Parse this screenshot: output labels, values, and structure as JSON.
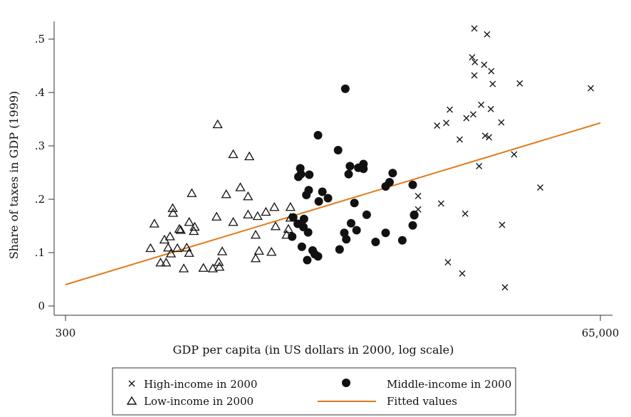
{
  "chart_data": {
    "type": "scatter",
    "title": "",
    "xlabel": "GDP per capita (in US dollars in 2000, log scale)",
    "ylabel": "Share of taxes in GDP (1999)",
    "xscale": "log",
    "xlim": [
      300,
      65000
    ],
    "ylim": [
      0,
      0.52
    ],
    "x_ticks": [
      {
        "value": 300,
        "label": "300"
      },
      {
        "value": 65000,
        "label": "65,000"
      }
    ],
    "y_ticks": [
      {
        "value": 0,
        "label": "0"
      },
      {
        "value": 0.1,
        "label": ".1"
      },
      {
        "value": 0.2,
        "label": ".2"
      },
      {
        "value": 0.3,
        "label": ".3"
      },
      {
        "value": 0.4,
        "label": ".4"
      },
      {
        "value": 0.5,
        "label": ".5"
      }
    ],
    "legend": {
      "placement": "bottom",
      "entries": [
        {
          "series": "high",
          "label": "High-income in 2000"
        },
        {
          "series": "middle",
          "label": "Middle-income in 2000"
        },
        {
          "series": "low",
          "label": "Low-income in 2000"
        },
        {
          "series": "fit",
          "label": "Fitted values"
        }
      ]
    },
    "fitted_line": {
      "name": "Fitted values",
      "color": "#e07b1a",
      "points": [
        [
          300,
          0.04
        ],
        [
          65000,
          0.343
        ]
      ]
    },
    "series": [
      {
        "name": "Low-income in 2000",
        "key": "low",
        "marker": "triangle",
        "points": [
          [
            705,
            0.108
          ],
          [
            733,
            0.154
          ],
          [
            780,
            0.081
          ],
          [
            811,
            0.124
          ],
          [
            825,
            0.081
          ],
          [
            842,
            0.109
          ],
          [
            858,
            0.13
          ],
          [
            866,
            0.098
          ],
          [
            881,
            0.183
          ],
          [
            885,
            0.174
          ],
          [
            924,
            0.108
          ],
          [
            942,
            0.144
          ],
          [
            955,
            0.142
          ],
          [
            985,
            0.07
          ],
          [
            1015,
            0.109
          ],
          [
            1040,
            0.157
          ],
          [
            1040,
            0.099
          ],
          [
            1068,
            0.211
          ],
          [
            1090,
            0.14
          ],
          [
            1100,
            0.148
          ],
          [
            1200,
            0.071
          ],
          [
            1320,
            0.07
          ],
          [
            1370,
            0.167
          ],
          [
            1385,
            0.34
          ],
          [
            1400,
            0.082
          ],
          [
            1410,
            0.073
          ],
          [
            1450,
            0.102
          ],
          [
            1510,
            0.209
          ],
          [
            1620,
            0.284
          ],
          [
            1620,
            0.157
          ],
          [
            1740,
            0.222
          ],
          [
            1880,
            0.171
          ],
          [
            1880,
            0.205
          ],
          [
            1905,
            0.28
          ],
          [
            2030,
            0.133
          ],
          [
            2030,
            0.089
          ],
          [
            2070,
            0.168
          ],
          [
            2100,
            0.103
          ],
          [
            2250,
            0.176
          ],
          [
            2380,
            0.101
          ],
          [
            2450,
            0.185
          ],
          [
            2480,
            0.149
          ],
          [
            2770,
            0.133
          ],
          [
            2820,
            0.144
          ],
          [
            2880,
            0.165
          ],
          [
            2880,
            0.185
          ]
        ]
      },
      {
        "name": "Middle-income in 2000",
        "key": "middle",
        "marker": "circle",
        "points": [
          [
            2930,
            0.13
          ],
          [
            2960,
            0.166
          ],
          [
            3100,
            0.154
          ],
          [
            3120,
            0.242
          ],
          [
            3180,
            0.258
          ],
          [
            3200,
            0.247
          ],
          [
            3230,
            0.111
          ],
          [
            3280,
            0.148
          ],
          [
            3300,
            0.163
          ],
          [
            3380,
            0.208
          ],
          [
            3410,
            0.086
          ],
          [
            3440,
            0.138
          ],
          [
            3460,
            0.217
          ],
          [
            3480,
            0.246
          ],
          [
            3600,
            0.104
          ],
          [
            3680,
            0.097
          ],
          [
            3800,
            0.093
          ],
          [
            3800,
            0.32
          ],
          [
            3830,
            0.196
          ],
          [
            3970,
            0.214
          ],
          [
            4200,
            0.202
          ],
          [
            4650,
            0.292
          ],
          [
            4720,
            0.106
          ],
          [
            4950,
            0.137
          ],
          [
            5000,
            0.407
          ],
          [
            5050,
            0.125
          ],
          [
            5170,
            0.247
          ],
          [
            5240,
            0.262
          ],
          [
            5300,
            0.155
          ],
          [
            5480,
            0.193
          ],
          [
            5600,
            0.142
          ],
          [
            5700,
            0.259
          ],
          [
            6000,
            0.266
          ],
          [
            6000,
            0.257
          ],
          [
            6200,
            0.171
          ],
          [
            6780,
            0.12
          ],
          [
            7500,
            0.224
          ],
          [
            7500,
            0.137
          ],
          [
            7800,
            0.232
          ],
          [
            8050,
            0.249
          ],
          [
            8870,
            0.123
          ],
          [
            9850,
            0.227
          ],
          [
            9850,
            0.151
          ],
          [
            10000,
            0.17
          ],
          [
            10000,
            0.171
          ]
        ]
      },
      {
        "name": "High-income in 2000",
        "key": "high",
        "marker": "x",
        "points": [
          [
            10400,
            0.206
          ],
          [
            10400,
            0.181
          ],
          [
            12580,
            0.338
          ],
          [
            13100,
            0.192
          ],
          [
            13800,
            0.343
          ],
          [
            14030,
            0.082
          ],
          [
            14300,
            0.368
          ],
          [
            15800,
            0.312
          ],
          [
            16200,
            0.061
          ],
          [
            16700,
            0.173
          ],
          [
            16900,
            0.352
          ],
          [
            17900,
            0.466
          ],
          [
            18100,
            0.359
          ],
          [
            18300,
            0.52
          ],
          [
            18300,
            0.432
          ],
          [
            18400,
            0.457
          ],
          [
            19200,
            0.262
          ],
          [
            19600,
            0.377
          ],
          [
            20200,
            0.452
          ],
          [
            20400,
            0.319
          ],
          [
            20800,
            0.509
          ],
          [
            21200,
            0.316
          ],
          [
            21600,
            0.369
          ],
          [
            21700,
            0.44
          ],
          [
            22000,
            0.416
          ],
          [
            24000,
            0.344
          ],
          [
            24200,
            0.152
          ],
          [
            24900,
            0.035
          ],
          [
            27300,
            0.284
          ],
          [
            28900,
            0.417
          ],
          [
            35500,
            0.222
          ],
          [
            59000,
            0.408
          ]
        ]
      }
    ]
  }
}
